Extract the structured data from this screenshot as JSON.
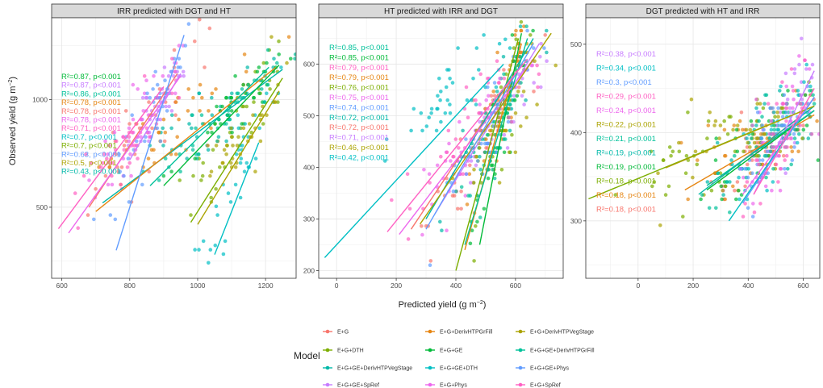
{
  "figure": {
    "x_axis_label": "Predicted yield (g m",
    "x_axis_label_sup": "−2",
    "x_axis_label_end": ")",
    "y_axis_label": "Observed yield (g m",
    "y_axis_label_sup": "−2",
    "y_axis_label_end": ")"
  },
  "legend": {
    "title": "Model",
    "items": [
      {
        "label": "E+G",
        "color": "#F8766D"
      },
      {
        "label": "E+G+DTH",
        "color": "#7CAE00"
      },
      {
        "label": "E+G+GE+DerivHTPVegStage",
        "color": "#00B8A8"
      },
      {
        "label": "E+G+GE+SpRef",
        "color": "#C77CFF"
      },
      {
        "label": "E+G+DerivHTPGrFill",
        "color": "#E68613"
      },
      {
        "label": "E+G+GE",
        "color": "#00BA38"
      },
      {
        "label": "E+G+GE+DTH",
        "color": "#00BFC4"
      },
      {
        "label": "E+G+Phys",
        "color": "#ED68ED"
      },
      {
        "label": "E+G+DerivHTPVegStage",
        "color": "#ABA300"
      },
      {
        "label": "E+G+GE+DerivHTPGrFill",
        "color": "#00C19A"
      },
      {
        "label": "E+G+GE+Phys",
        "color": "#619CFF"
      },
      {
        "label": "E+G+SpRef",
        "color": "#FF61C3"
      }
    ]
  },
  "chart_data": [
    {
      "type": "scatter",
      "title": "IRR predicted with DGT and HT",
      "xlim": [
        570,
        1290
      ],
      "ylim": [
        170,
        1380
      ],
      "x_ticks": [
        600,
        800,
        1000,
        1200
      ],
      "y_ticks": [
        500,
        1000
      ],
      "annotations": [
        {
          "text": "R²=0.87, p<0.001",
          "color": "#00BA38"
        },
        {
          "text": "R²=0.87, p<0.001",
          "color": "#C77CFF"
        },
        {
          "text": "R²=0.86, p<0.001",
          "color": "#00C19A"
        },
        {
          "text": "R²=0.78, p<0.001",
          "color": "#E68613"
        },
        {
          "text": "R²=0.78, p<0.001",
          "color": "#F8766D"
        },
        {
          "text": "R²=0.78, p<0.001",
          "color": "#ED68ED"
        },
        {
          "text": "R²=0.71, p<0.001",
          "color": "#FF61C3"
        },
        {
          "text": "R²=0.7, p<0.001",
          "color": "#00BFC4"
        },
        {
          "text": "R²=0.7, p<0.001",
          "color": "#7CAE00"
        },
        {
          "text": "R²=0.63, p<0.001",
          "color": "#619CFF"
        },
        {
          "text": "R²=0.5, p<0.001",
          "color": "#ABA300"
        },
        {
          "text": "R²=0.43, p<0.001",
          "color": "#00B8A8"
        }
      ],
      "fit_lines": [
        {
          "series": "E+G",
          "x": [
            680,
            940
          ],
          "y": [
            500,
            1120
          ]
        },
        {
          "series": "E+G+DTH",
          "x": [
            980,
            1250
          ],
          "y": [
            430,
            1100
          ]
        },
        {
          "series": "E+G+GE+DerivHTPVegStage",
          "x": [
            720,
            1250
          ],
          "y": [
            520,
            1140
          ]
        },
        {
          "series": "E+G+GE+SpRef",
          "x": [
            800,
            950
          ],
          "y": [
            720,
            1120
          ]
        },
        {
          "series": "E+G+DerivHTPGrFill",
          "x": [
            700,
            1230
          ],
          "y": [
            480,
            1150
          ]
        },
        {
          "series": "E+G+GE",
          "x": [
            900,
            1240
          ],
          "y": [
            600,
            1160
          ]
        },
        {
          "series": "E+G+GE+DTH",
          "x": [
            1050,
            1180
          ],
          "y": [
            280,
            800
          ]
        },
        {
          "series": "E+G+Phys",
          "x": [
            620,
            950
          ],
          "y": [
            380,
            1110
          ]
        },
        {
          "series": "E+G+DerivHTPVegStage",
          "x": [
            1000,
            1240
          ],
          "y": [
            420,
            1040
          ]
        },
        {
          "series": "E+G+GE+DerivHTPGrFill",
          "x": [
            860,
            1210
          ],
          "y": [
            600,
            1150
          ]
        },
        {
          "series": "E+G+GE+Phys",
          "x": [
            760,
            960
          ],
          "y": [
            300,
            1300
          ]
        },
        {
          "series": "E+G+SpRef",
          "x": [
            590,
            900
          ],
          "y": [
            400,
            1060
          ]
        }
      ],
      "point_clouds": [
        {
          "series": "E+G",
          "cx": 830,
          "cy": 850,
          "sx": 70,
          "sy": 170,
          "slope": 2.2,
          "n": 40
        },
        {
          "series": "E+G+DTH",
          "cx": 1130,
          "cy": 880,
          "sx": 70,
          "sy": 180,
          "slope": 2.2,
          "n": 40
        },
        {
          "series": "E+G+GE+DerivHTPVegStage",
          "cx": 1050,
          "cy": 930,
          "sx": 100,
          "sy": 120,
          "slope": 0.9,
          "n": 40
        },
        {
          "series": "E+G+GE+SpRef",
          "cx": 880,
          "cy": 950,
          "sx": 40,
          "sy": 120,
          "slope": 2.4,
          "n": 40
        },
        {
          "series": "E+G+DerivHTPGrFill",
          "cx": 960,
          "cy": 900,
          "sx": 110,
          "sy": 150,
          "slope": 1.1,
          "n": 40
        },
        {
          "series": "E+G+GE",
          "cx": 1100,
          "cy": 950,
          "sx": 80,
          "sy": 120,
          "slope": 1.4,
          "n": 40
        },
        {
          "series": "E+G+GE+DTH",
          "cx": 1120,
          "cy": 700,
          "sx": 60,
          "sy": 230,
          "slope": 3.0,
          "n": 40
        },
        {
          "series": "E+G+Phys",
          "cx": 820,
          "cy": 880,
          "sx": 80,
          "sy": 170,
          "slope": 2.0,
          "n": 40
        },
        {
          "series": "E+G+DerivHTPVegStage",
          "cx": 1150,
          "cy": 850,
          "sx": 60,
          "sy": 180,
          "slope": 2.3,
          "n": 40
        },
        {
          "series": "E+G+GE+DerivHTPGrFill",
          "cx": 1080,
          "cy": 950,
          "sx": 90,
          "sy": 120,
          "slope": 1.3,
          "n": 40
        },
        {
          "series": "E+G+GE+Phys",
          "cx": 860,
          "cy": 900,
          "sx": 60,
          "sy": 200,
          "slope": 3.0,
          "n": 40
        },
        {
          "series": "E+G+SpRef",
          "cx": 760,
          "cy": 760,
          "sx": 90,
          "sy": 170,
          "slope": 1.8,
          "n": 40
        }
      ]
    },
    {
      "type": "scatter",
      "title": "HT predicted with IRR and DGT",
      "xlim": [
        -60,
        760
      ],
      "ylim": [
        185,
        690
      ],
      "x_ticks": [
        0,
        200,
        400,
        600
      ],
      "y_ticks": [
        200,
        300,
        400,
        500,
        600
      ],
      "annotations": [
        {
          "text": "R²=0.85, p<0.001",
          "color": "#00C19A"
        },
        {
          "text": "R²=0.85, p<0.001",
          "color": "#00BA38"
        },
        {
          "text": "R²=0.79, p<0.001",
          "color": "#FF61C3"
        },
        {
          "text": "R²=0.79, p<0.001",
          "color": "#E68613"
        },
        {
          "text": "R²=0.76, p<0.001",
          "color": "#7CAE00"
        },
        {
          "text": "R²=0.75, p<0.001",
          "color": "#ED68ED"
        },
        {
          "text": "R²=0.74, p<0.001",
          "color": "#619CFF"
        },
        {
          "text": "R²=0.72, p<0.001",
          "color": "#00B8A8"
        },
        {
          "text": "R²=0.72, p<0.001",
          "color": "#F8766D"
        },
        {
          "text": "R²=0.71, p<0.001",
          "color": "#C77CFF"
        },
        {
          "text": "R²=0.46, p<0.001",
          "color": "#ABA300"
        },
        {
          "text": "R²=0.42, p<0.001",
          "color": "#00BFC4"
        }
      ],
      "fit_lines": [
        {
          "series": "E+G",
          "x": [
            250,
            620
          ],
          "y": [
            280,
            600
          ]
        },
        {
          "series": "E+G+DTH",
          "x": [
            400,
            610
          ],
          "y": [
            200,
            650
          ]
        },
        {
          "series": "E+G+GE+DerivHTPVegStage",
          "x": [
            300,
            660
          ],
          "y": [
            300,
            650
          ]
        },
        {
          "series": "E+G+GE+SpRef",
          "x": [
            330,
            680
          ],
          "y": [
            310,
            640
          ]
        },
        {
          "series": "E+G+DerivHTPGrFill",
          "x": [
            430,
            620
          ],
          "y": [
            240,
            640
          ]
        },
        {
          "series": "E+G+GE",
          "x": [
            480,
            620
          ],
          "y": [
            250,
            660
          ]
        },
        {
          "series": "E+G+GE+DTH",
          "x": [
            -40,
            560
          ],
          "y": [
            225,
            600
          ]
        },
        {
          "series": "E+G+Phys",
          "x": [
            210,
            660
          ],
          "y": [
            270,
            610
          ]
        },
        {
          "series": "E+G+DerivHTPVegStage",
          "x": [
            280,
            720
          ],
          "y": [
            290,
            660
          ]
        },
        {
          "series": "E+G+GE+DerivHTPGrFill",
          "x": [
            430,
            640
          ],
          "y": [
            250,
            650
          ]
        },
        {
          "series": "E+G+GE+Phys",
          "x": [
            300,
            660
          ],
          "y": [
            280,
            640
          ]
        },
        {
          "series": "E+G+SpRef",
          "x": [
            170,
            640
          ],
          "y": [
            275,
            610
          ]
        }
      ],
      "point_clouds": [
        {
          "series": "E+G",
          "cx": 480,
          "cy": 460,
          "sx": 100,
          "sy": 90,
          "slope": 0.9,
          "n": 40
        },
        {
          "series": "E+G+DTH",
          "cx": 540,
          "cy": 470,
          "sx": 60,
          "sy": 100,
          "slope": 1.8,
          "n": 40
        },
        {
          "series": "E+G+GE+DerivHTPVegStage",
          "cx": 520,
          "cy": 490,
          "sx": 90,
          "sy": 80,
          "slope": 1.0,
          "n": 40
        },
        {
          "series": "E+G+GE+SpRef",
          "cx": 580,
          "cy": 520,
          "sx": 70,
          "sy": 70,
          "slope": 0.9,
          "n": 40
        },
        {
          "series": "E+G+DerivHTPGrFill",
          "cx": 540,
          "cy": 480,
          "sx": 60,
          "sy": 100,
          "slope": 1.8,
          "n": 40
        },
        {
          "series": "E+G+GE",
          "cx": 560,
          "cy": 500,
          "sx": 50,
          "sy": 90,
          "slope": 2.0,
          "n": 40
        },
        {
          "series": "E+G+GE+DTH",
          "cx": 360,
          "cy": 540,
          "sx": 110,
          "sy": 70,
          "slope": 0.5,
          "n": 40
        },
        {
          "series": "E+G+Phys",
          "cx": 470,
          "cy": 470,
          "sx": 110,
          "sy": 80,
          "slope": 0.8,
          "n": 40
        },
        {
          "series": "E+G+DerivHTPVegStage",
          "cx": 560,
          "cy": 500,
          "sx": 80,
          "sy": 80,
          "slope": 0.8,
          "n": 40
        },
        {
          "series": "E+G+GE+DerivHTPGrFill",
          "cx": 550,
          "cy": 500,
          "sx": 60,
          "sy": 90,
          "slope": 1.6,
          "n": 40
        },
        {
          "series": "E+G+GE+Phys",
          "cx": 520,
          "cy": 490,
          "sx": 90,
          "sy": 80,
          "slope": 1.0,
          "n": 40
        },
        {
          "series": "E+G+SpRef",
          "cx": 440,
          "cy": 460,
          "sx": 110,
          "sy": 80,
          "slope": 0.7,
          "n": 40
        }
      ]
    },
    {
      "type": "scatter",
      "title": "DGT predicted with HT and IRR",
      "xlim": [
        -190,
        660
      ],
      "ylim": [
        235,
        530
      ],
      "x_ticks": [
        0,
        200,
        400,
        600
      ],
      "y_ticks": [
        300,
        400,
        500
      ],
      "annotations": [
        {
          "text": "R²=0.38, p<0.001",
          "color": "#C77CFF"
        },
        {
          "text": "R²=0.34, p<0.001",
          "color": "#00BFC4"
        },
        {
          "text": "R²=0.3, p<0.001",
          "color": "#619CFF"
        },
        {
          "text": "R²=0.29, p<0.001",
          "color": "#FF61C3"
        },
        {
          "text": "R²=0.24, p<0.001",
          "color": "#ED68ED"
        },
        {
          "text": "R²=0.22, p<0.001",
          "color": "#ABA300"
        },
        {
          "text": "R²=0.21, p<0.001",
          "color": "#00C19A"
        },
        {
          "text": "R²=0.19, p<0.001",
          "color": "#00B8A8"
        },
        {
          "text": "R²=0.19, p<0.001",
          "color": "#00BA38"
        },
        {
          "text": "R²=0.18, p<0.001",
          "color": "#7CAE00"
        },
        {
          "text": "R²=0.18, p<0.001",
          "color": "#E68613"
        },
        {
          "text": "R²=0.18, p<0.001",
          "color": "#F8766D"
        }
      ],
      "fit_lines": [
        {
          "series": "E+G",
          "x": [
            300,
            640
          ],
          "y": [
            350,
            430
          ]
        },
        {
          "series": "E+G+DTH",
          "x": [
            -180,
            640
          ],
          "y": [
            325,
            430
          ]
        },
        {
          "series": "E+G+GE+DerivHTPVegStage",
          "x": [
            220,
            640
          ],
          "y": [
            330,
            430
          ]
        },
        {
          "series": "E+G+GE+SpRef",
          "x": [
            420,
            640
          ],
          "y": [
            330,
            470
          ]
        },
        {
          "series": "E+G+DerivHTPGrFill",
          "x": [
            170,
            640
          ],
          "y": [
            335,
            420
          ]
        },
        {
          "series": "E+G+GE",
          "x": [
            250,
            640
          ],
          "y": [
            335,
            425
          ]
        },
        {
          "series": "E+G+GE+DTH",
          "x": [
            330,
            640
          ],
          "y": [
            300,
            440
          ]
        },
        {
          "series": "E+G+Phys",
          "x": [
            380,
            640
          ],
          "y": [
            330,
            440
          ]
        },
        {
          "series": "E+G+DerivHTPVegStage",
          "x": [
            100,
            640
          ],
          "y": [
            360,
            430
          ]
        },
        {
          "series": "E+G+GE+DerivHTPGrFill",
          "x": [
            250,
            640
          ],
          "y": [
            340,
            425
          ]
        },
        {
          "series": "E+G+GE+Phys",
          "x": [
            380,
            640
          ],
          "y": [
            320,
            440
          ]
        },
        {
          "series": "E+G+SpRef",
          "x": [
            420,
            640
          ],
          "y": [
            330,
            450
          ]
        }
      ],
      "point_clouds": [
        {
          "series": "E+G",
          "cx": 470,
          "cy": 390,
          "sx": 90,
          "sy": 40,
          "slope": 0.2,
          "n": 40
        },
        {
          "series": "E+G+DTH",
          "cx": 300,
          "cy": 390,
          "sx": 180,
          "sy": 50,
          "slope": 0.12,
          "n": 40
        },
        {
          "series": "E+G+GE+DerivHTPVegStage",
          "cx": 450,
          "cy": 390,
          "sx": 100,
          "sy": 40,
          "slope": 0.2,
          "n": 40
        },
        {
          "series": "E+G+GE+SpRef",
          "cx": 540,
          "cy": 410,
          "sx": 60,
          "sy": 50,
          "slope": 0.5,
          "n": 40
        },
        {
          "series": "E+G+DerivHTPGrFill",
          "cx": 420,
          "cy": 385,
          "sx": 120,
          "sy": 45,
          "slope": 0.15,
          "n": 40
        },
        {
          "series": "E+G+GE",
          "cx": 460,
          "cy": 390,
          "sx": 110,
          "sy": 40,
          "slope": 0.2,
          "n": 40
        },
        {
          "series": "E+G+GE+DTH",
          "cx": 470,
          "cy": 390,
          "sx": 90,
          "sy": 50,
          "slope": 0.4,
          "n": 40
        },
        {
          "series": "E+G+Phys",
          "cx": 500,
          "cy": 400,
          "sx": 80,
          "sy": 50,
          "slope": 0.4,
          "n": 40
        },
        {
          "series": "E+G+DerivHTPVegStage",
          "cx": 380,
          "cy": 395,
          "sx": 150,
          "sy": 50,
          "slope": 0.12,
          "n": 40
        },
        {
          "series": "E+G+GE+DerivHTPGrFill",
          "cx": 470,
          "cy": 390,
          "sx": 100,
          "sy": 40,
          "slope": 0.2,
          "n": 40
        },
        {
          "series": "E+G+GE+Phys",
          "cx": 510,
          "cy": 400,
          "sx": 70,
          "sy": 50,
          "slope": 0.4,
          "n": 40
        },
        {
          "series": "E+G+SpRef",
          "cx": 530,
          "cy": 405,
          "sx": 70,
          "sy": 50,
          "slope": 0.45,
          "n": 40
        }
      ]
    }
  ]
}
